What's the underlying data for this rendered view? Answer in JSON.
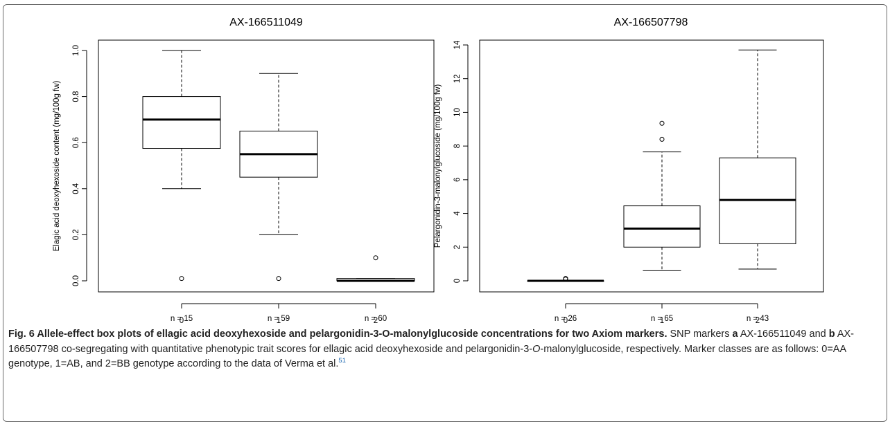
{
  "chart_data": [
    {
      "type": "box",
      "title": "AX-166511049",
      "xlabel": "",
      "ylabel": "Elagic acid deoxyhexoside content (mg/100g fw)",
      "ylim": [
        0,
        1.0
      ],
      "yticks": [
        "0.0",
        "0.2",
        "0.4",
        "0.6",
        "0.8",
        "1.0"
      ],
      "categories": [
        "0",
        "1",
        "2"
      ],
      "counts": [
        "n = 15",
        "n = 59",
        "n = 60"
      ],
      "boxes": [
        {
          "min": 0.4,
          "q1": 0.575,
          "median": 0.7,
          "q3": 0.8,
          "max": 1.0,
          "outliers": [
            0.01
          ]
        },
        {
          "min": 0.2,
          "q1": 0.45,
          "median": 0.55,
          "q3": 0.65,
          "max": 0.9,
          "outliers": [
            0.01
          ]
        },
        {
          "min": 0.0,
          "q1": 0.0,
          "median": 0.0,
          "q3": 0.01,
          "max": 0.01,
          "outliers": [
            0.1
          ]
        }
      ]
    },
    {
      "type": "box",
      "title": "AX-166507798",
      "xlabel": "",
      "ylabel": "Pelargonidin-3-malonylglucoside (mg/100g fw)",
      "ylim": [
        0,
        14
      ],
      "yticks": [
        "0",
        "2",
        "4",
        "6",
        "8",
        "10",
        "12",
        "14"
      ],
      "categories": [
        "0",
        "1",
        "2"
      ],
      "counts": [
        "n = 26",
        "n = 65",
        "n = 43"
      ],
      "boxes": [
        {
          "min": 0.0,
          "q1": 0.0,
          "median": 0.0,
          "q3": 0.0,
          "max": 0.0,
          "outliers": [
            0.1,
            0.14
          ]
        },
        {
          "min": 0.6,
          "q1": 2.0,
          "median": 3.1,
          "q3": 4.45,
          "max": 7.65,
          "outliers": [
            8.4,
            9.35
          ]
        },
        {
          "min": 0.7,
          "q1": 2.2,
          "median": 4.8,
          "q3": 7.3,
          "max": 13.7,
          "outliers": []
        }
      ]
    }
  ],
  "caption": {
    "title": "Fig. 6 Allele-effect box plots of ellagic acid deoxyhexoside and pelargonidin-3-O-malonylglucoside concentrations for two Axiom markers.",
    "text1": "SNP markers",
    "a": "a",
    "text2": "AX-166511049 and",
    "b": "b",
    "text3": "AX-166507798 co-segregating with quantitative phenotypic trait scores for ellagic acid deoxyhexoside and pelargonidin-3-",
    "o": "O",
    "text4": "-malonylglucoside, respectively. Marker classes are as follows: 0=AA genotype, 1=AB, and 2=BB genotype according to the data of Verma et al.",
    "ref": "51"
  }
}
